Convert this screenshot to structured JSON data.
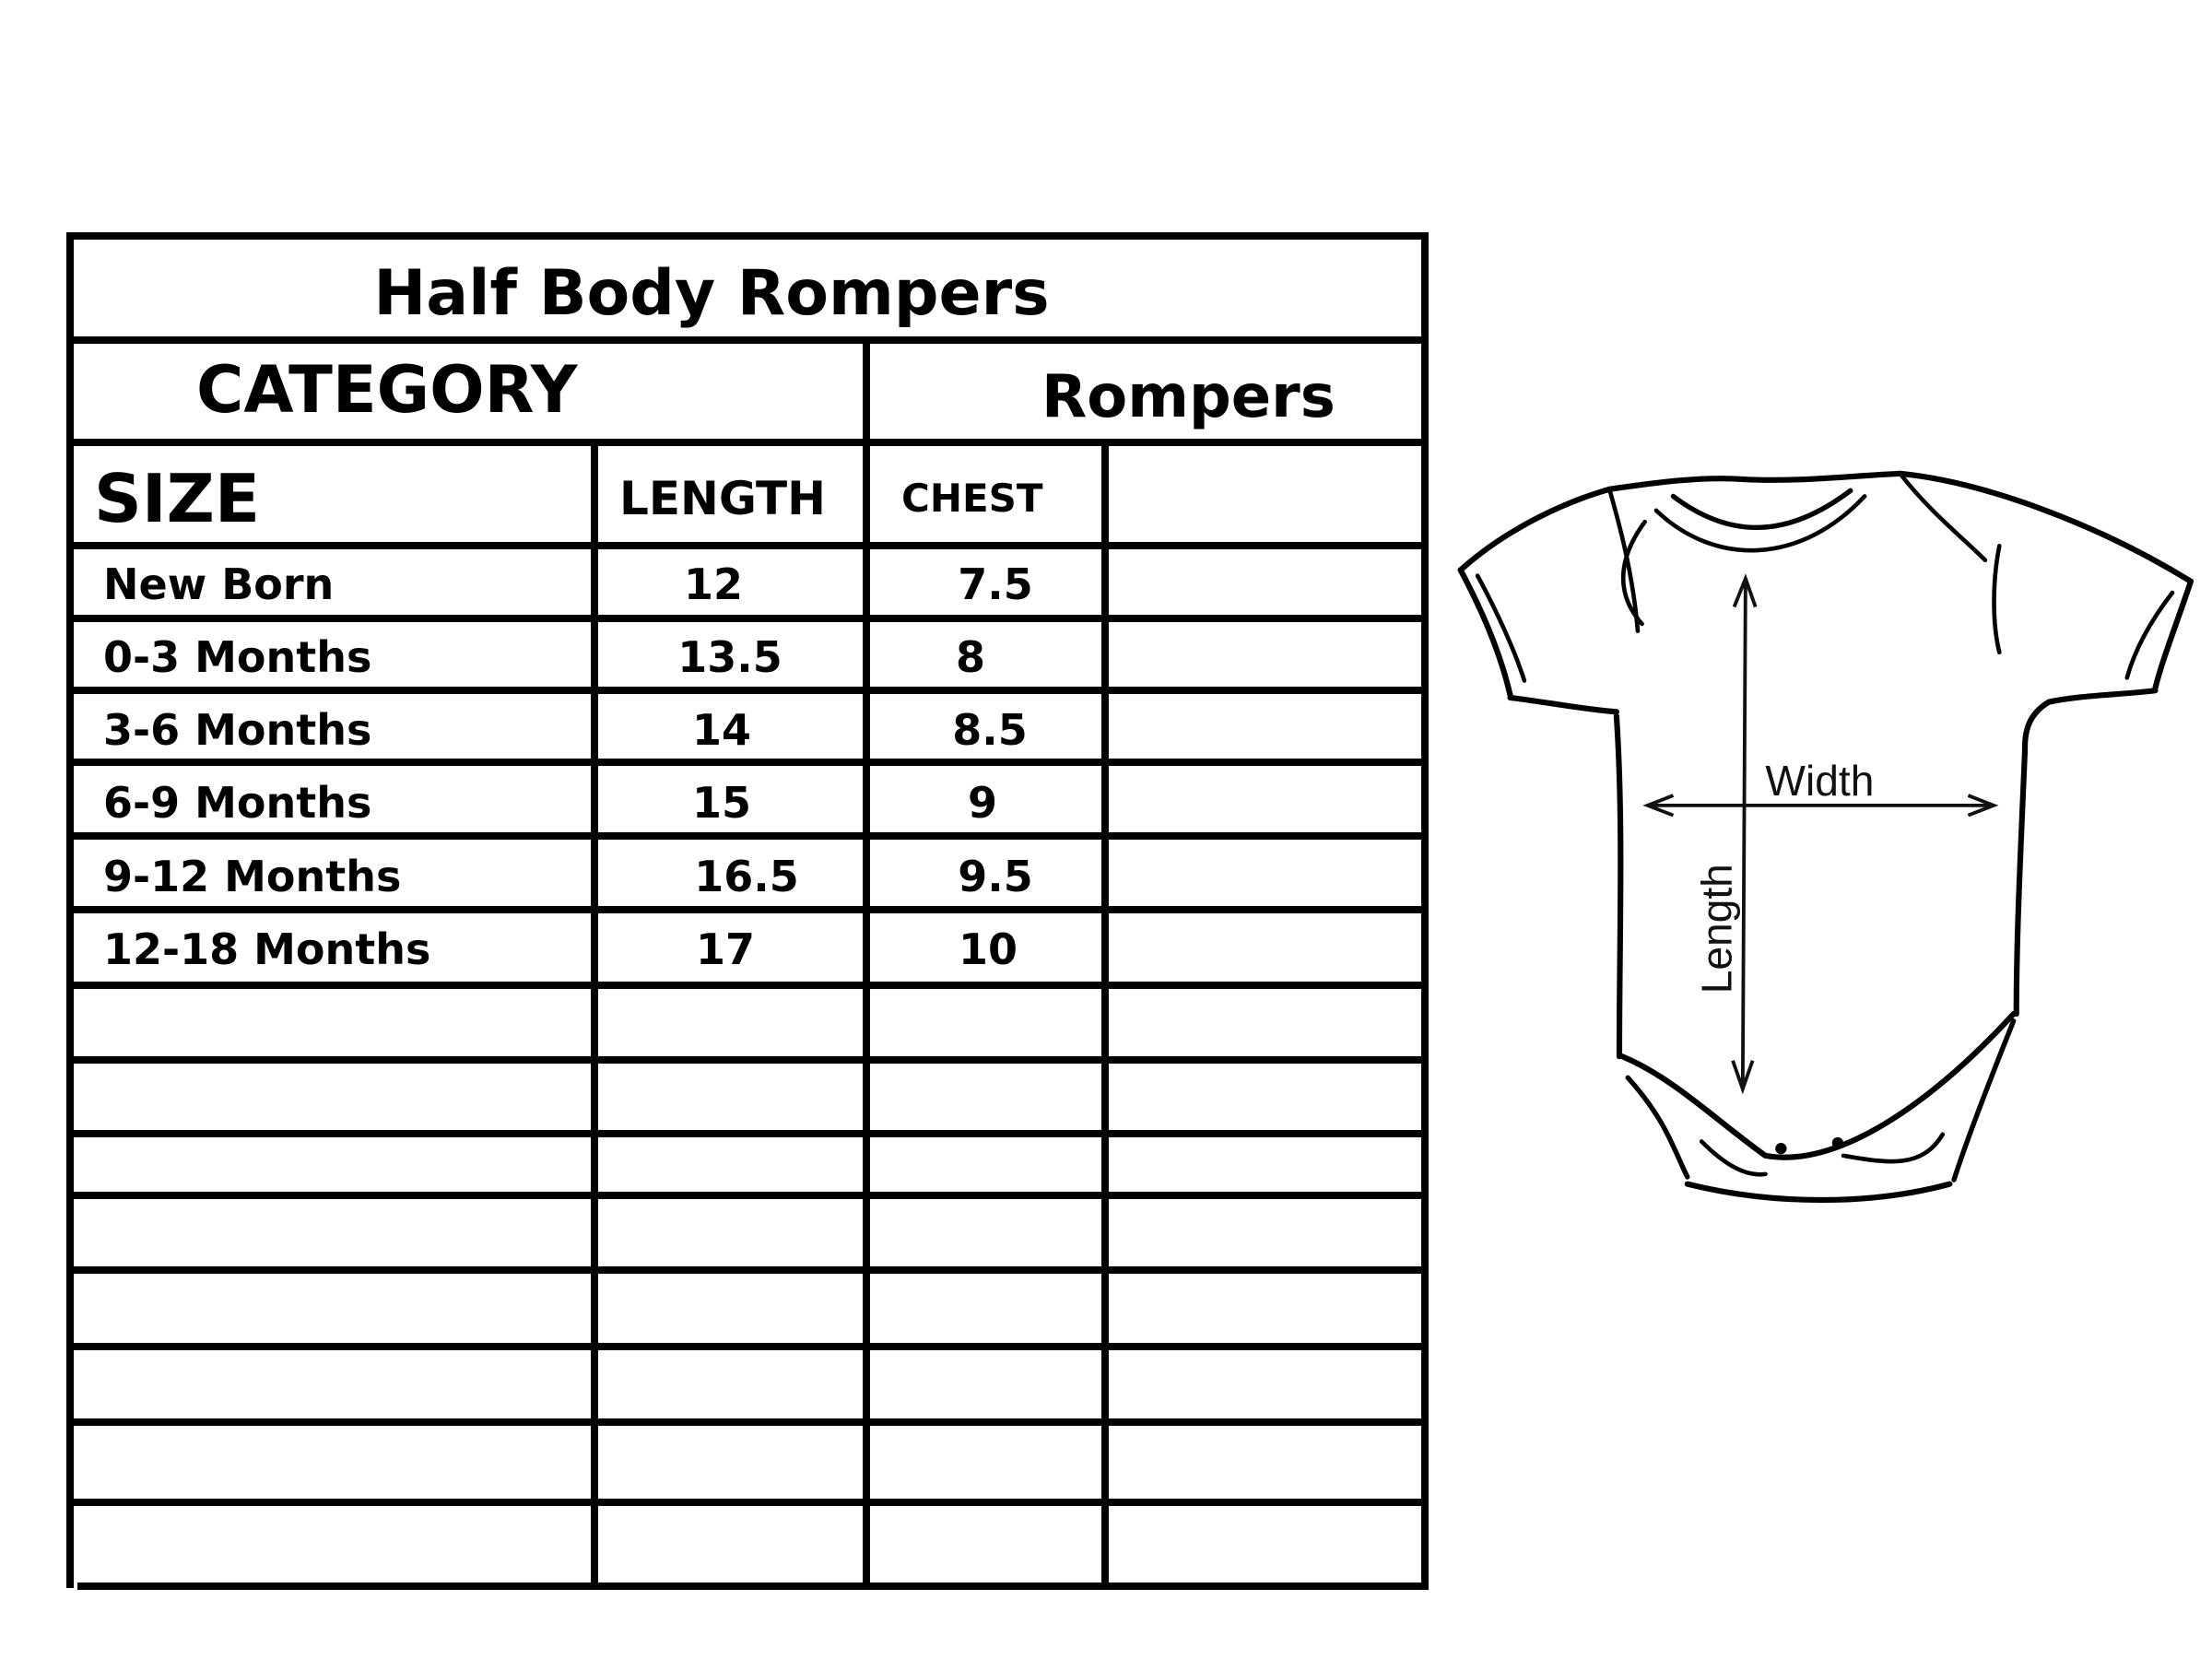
{
  "table": {
    "title": "Half Body Rompers",
    "category_label": "CATEGORY",
    "category_value": "Rompers",
    "headers": {
      "size": "SIZE",
      "length": "LENGTH",
      "chest": "CHEST"
    },
    "rows": [
      {
        "size": "New Born",
        "length": "12",
        "chest": "7.5"
      },
      {
        "size": "0-3 Months",
        "length": "13.5",
        "chest": "8"
      },
      {
        "size": "3-6 Months",
        "length": "14",
        "chest": "8.5"
      },
      {
        "size": "6-9 Months",
        "length": "15",
        "chest": "9"
      },
      {
        "size": "9-12 Months",
        "length": "16.5",
        "chest": "9.5"
      },
      {
        "size": "12-18 Months",
        "length": "17",
        "chest": "10"
      }
    ],
    "empty_rows": 8
  },
  "diagram": {
    "width_label": "Width",
    "length_label": "Length"
  }
}
